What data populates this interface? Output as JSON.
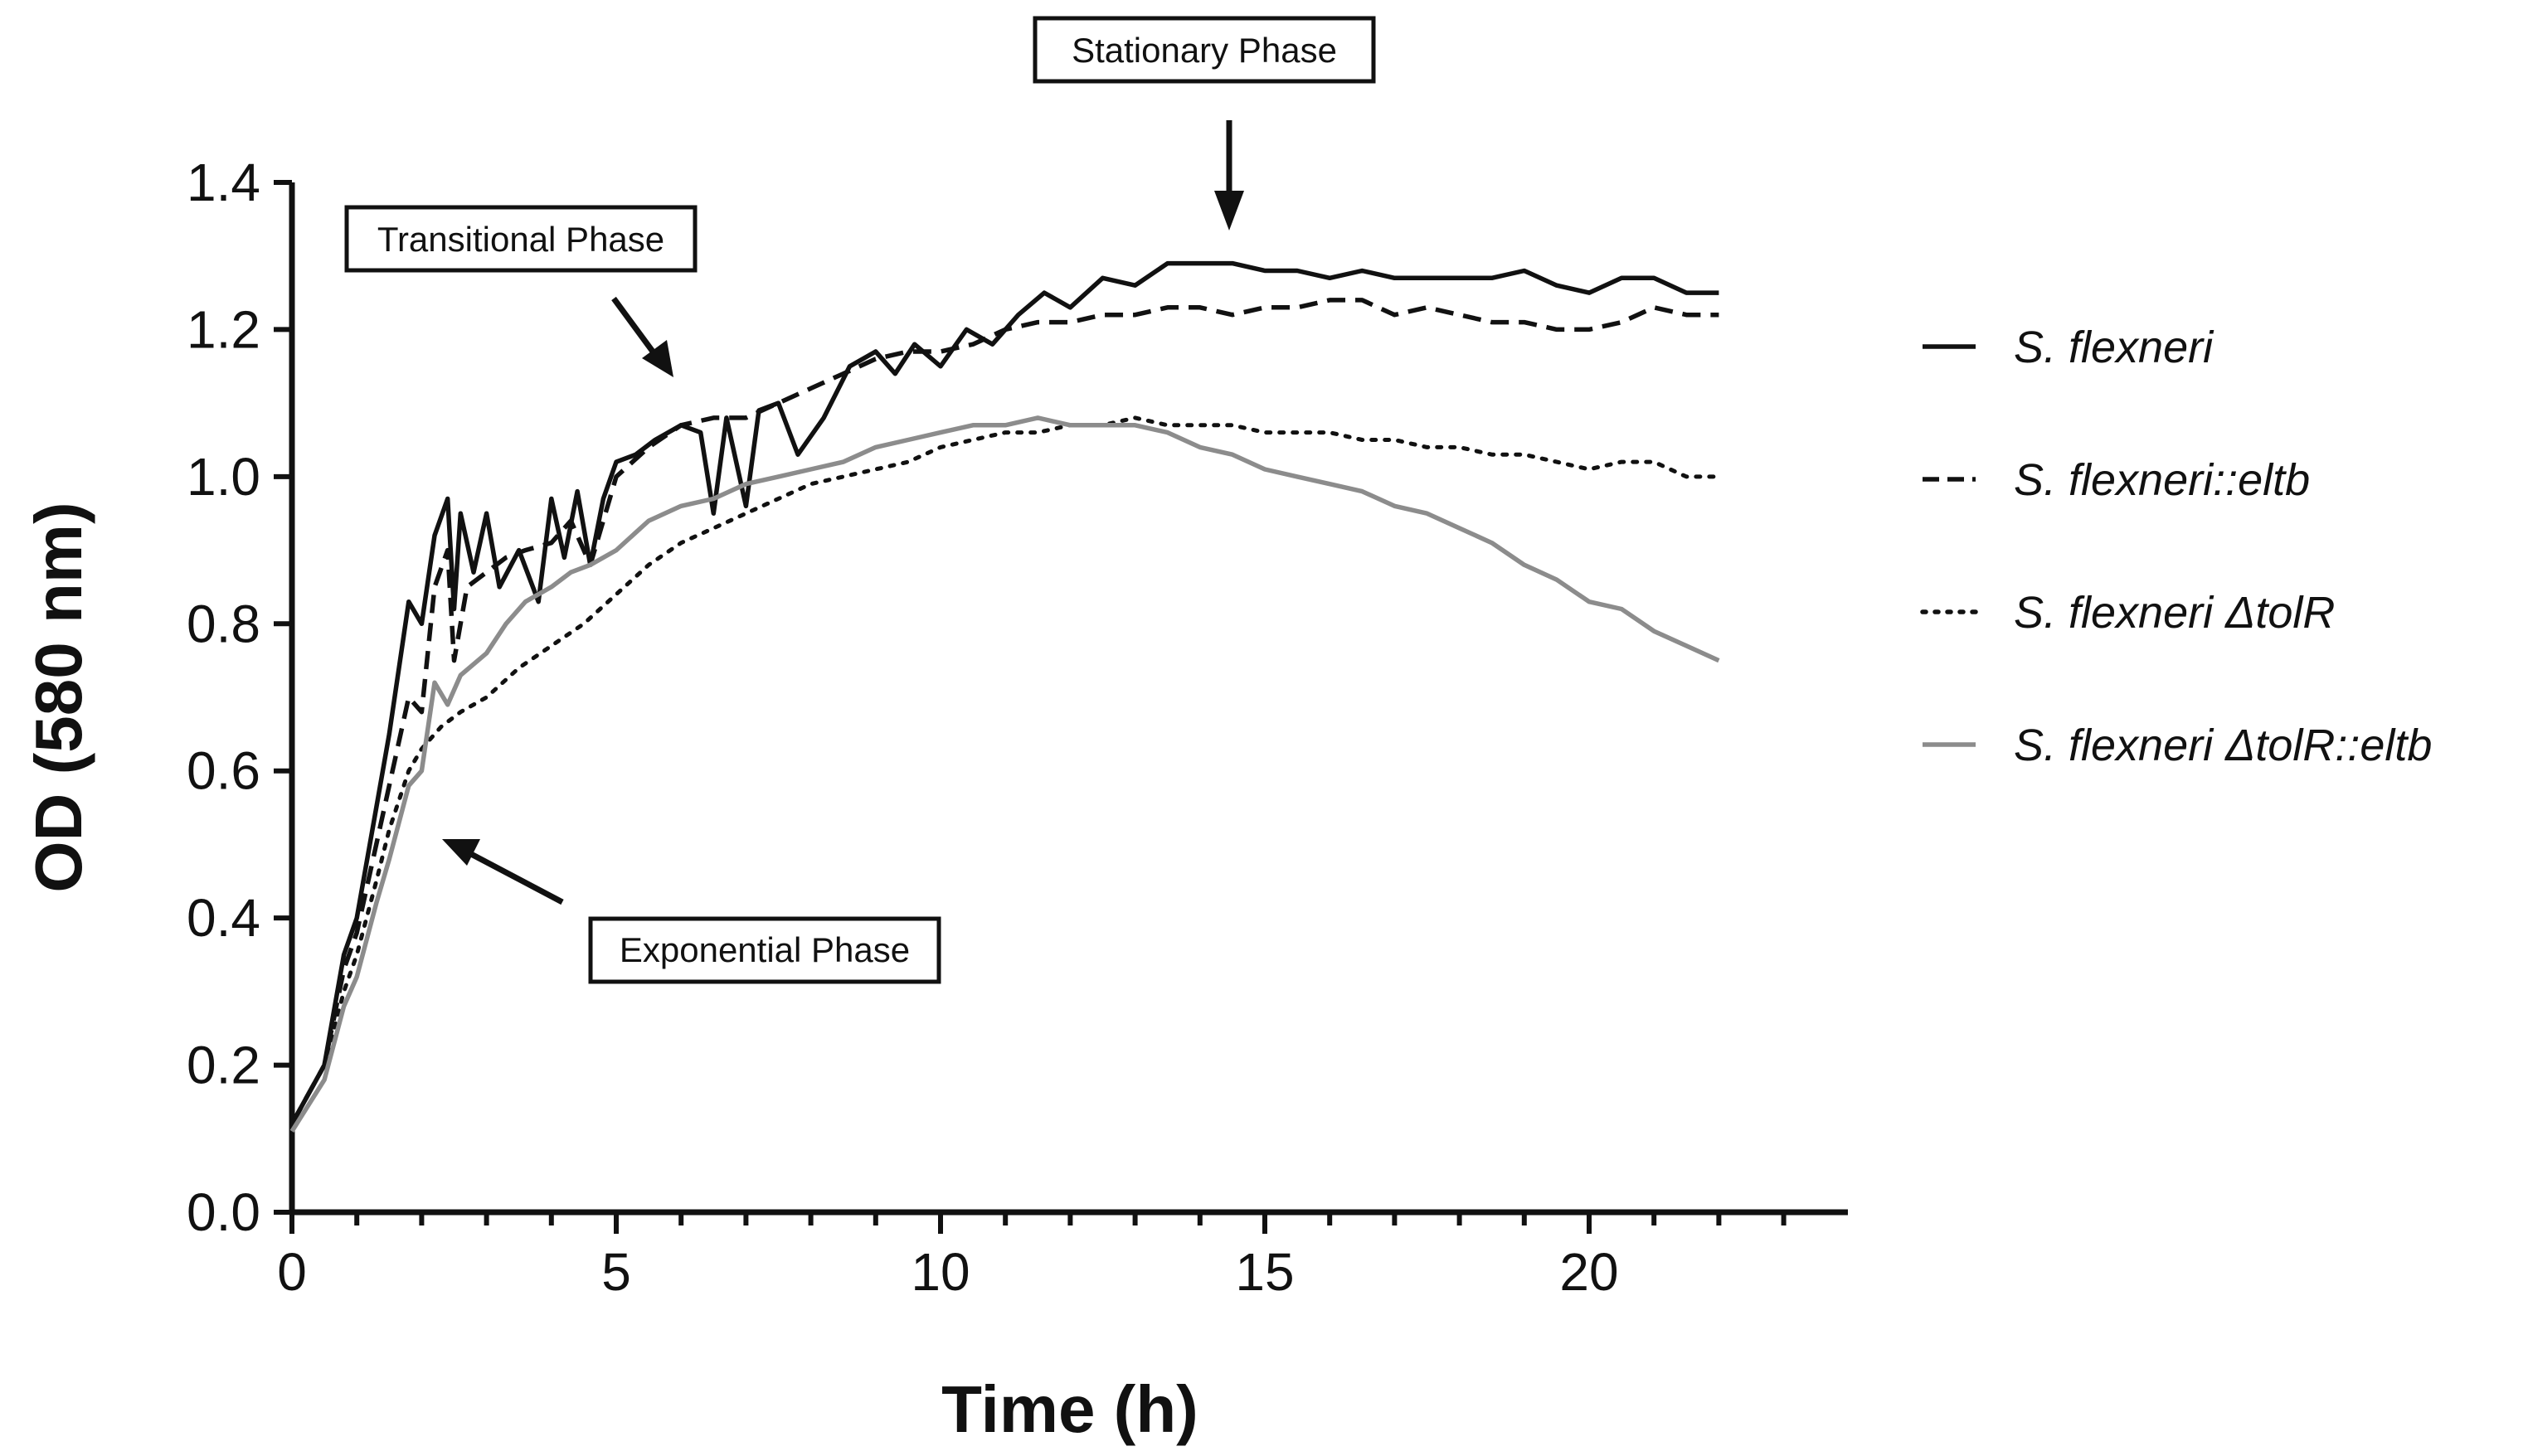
{
  "chart_data": {
    "type": "line",
    "title": "",
    "xlabel": "Time (h)",
    "ylabel": "OD (580 nm)",
    "xlim": [
      0,
      24
    ],
    "ylim": [
      0,
      1.4
    ],
    "xticks": [
      0,
      5,
      10,
      15,
      20
    ],
    "xtick_labels": [
      "0",
      "5",
      "10",
      "15",
      "20"
    ],
    "yticks": [
      0,
      0.2,
      0.4,
      0.6,
      0.8,
      1.0,
      1.2,
      1.4
    ],
    "ytick_labels": [
      "0.0",
      "0.2",
      "0.4",
      "0.6",
      "0.8",
      "1.0",
      "1.2",
      "1.4"
    ],
    "grid": false,
    "legend_position": "right",
    "series": [
      {
        "name": "S. flexneri",
        "color": "#111111",
        "style": "solid",
        "points": [
          [
            0,
            0.12
          ],
          [
            0.5,
            0.2
          ],
          [
            0.8,
            0.35
          ],
          [
            1.0,
            0.4
          ],
          [
            1.3,
            0.55
          ],
          [
            1.5,
            0.65
          ],
          [
            1.8,
            0.83
          ],
          [
            2.0,
            0.8
          ],
          [
            2.2,
            0.92
          ],
          [
            2.4,
            0.97
          ],
          [
            2.5,
            0.82
          ],
          [
            2.6,
            0.95
          ],
          [
            2.8,
            0.87
          ],
          [
            3.0,
            0.95
          ],
          [
            3.2,
            0.85
          ],
          [
            3.5,
            0.9
          ],
          [
            3.8,
            0.83
          ],
          [
            4.0,
            0.97
          ],
          [
            4.2,
            0.89
          ],
          [
            4.4,
            0.98
          ],
          [
            4.6,
            0.88
          ],
          [
            4.8,
            0.97
          ],
          [
            5.0,
            1.02
          ],
          [
            5.3,
            1.03
          ],
          [
            5.6,
            1.05
          ],
          [
            6.0,
            1.07
          ],
          [
            6.3,
            1.06
          ],
          [
            6.5,
            0.95
          ],
          [
            6.7,
            1.08
          ],
          [
            7.0,
            0.96
          ],
          [
            7.2,
            1.09
          ],
          [
            7.5,
            1.1
          ],
          [
            7.8,
            1.03
          ],
          [
            8.2,
            1.08
          ],
          [
            8.6,
            1.15
          ],
          [
            9.0,
            1.17
          ],
          [
            9.3,
            1.14
          ],
          [
            9.6,
            1.18
          ],
          [
            10.0,
            1.15
          ],
          [
            10.4,
            1.2
          ],
          [
            10.8,
            1.18
          ],
          [
            11.2,
            1.22
          ],
          [
            11.6,
            1.25
          ],
          [
            12.0,
            1.23
          ],
          [
            12.5,
            1.27
          ],
          [
            13.0,
            1.26
          ],
          [
            13.5,
            1.29
          ],
          [
            14.0,
            1.29
          ],
          [
            14.5,
            1.29
          ],
          [
            15.0,
            1.28
          ],
          [
            15.5,
            1.28
          ],
          [
            16.0,
            1.27
          ],
          [
            16.5,
            1.28
          ],
          [
            17.0,
            1.27
          ],
          [
            17.5,
            1.27
          ],
          [
            18.0,
            1.27
          ],
          [
            18.5,
            1.27
          ],
          [
            19.0,
            1.28
          ],
          [
            19.5,
            1.26
          ],
          [
            20.0,
            1.25
          ],
          [
            20.5,
            1.27
          ],
          [
            21.0,
            1.27
          ],
          [
            21.5,
            1.25
          ],
          [
            22.0,
            1.25
          ]
        ]
      },
      {
        "name": "S. flexneri::eltb",
        "color": "#111111",
        "style": "dashed",
        "points": [
          [
            0,
            0.12
          ],
          [
            0.5,
            0.2
          ],
          [
            0.8,
            0.33
          ],
          [
            1.0,
            0.38
          ],
          [
            1.3,
            0.5
          ],
          [
            1.5,
            0.58
          ],
          [
            1.8,
            0.7
          ],
          [
            2.0,
            0.68
          ],
          [
            2.2,
            0.85
          ],
          [
            2.4,
            0.9
          ],
          [
            2.5,
            0.75
          ],
          [
            2.7,
            0.85
          ],
          [
            3.0,
            0.87
          ],
          [
            3.3,
            0.89
          ],
          [
            3.6,
            0.9
          ],
          [
            4.0,
            0.91
          ],
          [
            4.3,
            0.94
          ],
          [
            4.6,
            0.88
          ],
          [
            5.0,
            1.0
          ],
          [
            5.5,
            1.04
          ],
          [
            6.0,
            1.07
          ],
          [
            6.5,
            1.08
          ],
          [
            7.0,
            1.08
          ],
          [
            7.5,
            1.1
          ],
          [
            8.0,
            1.12
          ],
          [
            8.5,
            1.14
          ],
          [
            9.0,
            1.16
          ],
          [
            9.5,
            1.17
          ],
          [
            10.0,
            1.17
          ],
          [
            10.5,
            1.18
          ],
          [
            11.0,
            1.2
          ],
          [
            11.5,
            1.21
          ],
          [
            12.0,
            1.21
          ],
          [
            12.5,
            1.22
          ],
          [
            13.0,
            1.22
          ],
          [
            13.5,
            1.23
          ],
          [
            14.0,
            1.23
          ],
          [
            14.5,
            1.22
          ],
          [
            15.0,
            1.23
          ],
          [
            15.5,
            1.23
          ],
          [
            16.0,
            1.24
          ],
          [
            16.5,
            1.24
          ],
          [
            17.0,
            1.22
          ],
          [
            17.5,
            1.23
          ],
          [
            18.0,
            1.22
          ],
          [
            18.5,
            1.21
          ],
          [
            19.0,
            1.21
          ],
          [
            19.5,
            1.2
          ],
          [
            20.0,
            1.2
          ],
          [
            20.5,
            1.21
          ],
          [
            21.0,
            1.23
          ],
          [
            21.5,
            1.22
          ],
          [
            22.0,
            1.22
          ]
        ]
      },
      {
        "name": "S. flexneri ΔtolR",
        "color": "#111111",
        "style": "dotted",
        "points": [
          [
            0,
            0.12
          ],
          [
            0.5,
            0.2
          ],
          [
            0.8,
            0.3
          ],
          [
            1.0,
            0.35
          ],
          [
            1.3,
            0.45
          ],
          [
            1.5,
            0.52
          ],
          [
            1.8,
            0.6
          ],
          [
            2.0,
            0.63
          ],
          [
            2.3,
            0.66
          ],
          [
            2.6,
            0.68
          ],
          [
            3.0,
            0.7
          ],
          [
            3.5,
            0.74
          ],
          [
            4.0,
            0.77
          ],
          [
            4.5,
            0.8
          ],
          [
            5.0,
            0.84
          ],
          [
            5.5,
            0.88
          ],
          [
            6.0,
            0.91
          ],
          [
            6.5,
            0.93
          ],
          [
            7.0,
            0.95
          ],
          [
            7.5,
            0.97
          ],
          [
            8.0,
            0.99
          ],
          [
            8.5,
            1.0
          ],
          [
            9.0,
            1.01
          ],
          [
            9.5,
            1.02
          ],
          [
            10.0,
            1.04
          ],
          [
            10.5,
            1.05
          ],
          [
            11.0,
            1.06
          ],
          [
            11.5,
            1.06
          ],
          [
            12.0,
            1.07
          ],
          [
            12.5,
            1.07
          ],
          [
            13.0,
            1.08
          ],
          [
            13.5,
            1.07
          ],
          [
            14.0,
            1.07
          ],
          [
            14.5,
            1.07
          ],
          [
            15.0,
            1.06
          ],
          [
            15.5,
            1.06
          ],
          [
            16.0,
            1.06
          ],
          [
            16.5,
            1.05
          ],
          [
            17.0,
            1.05
          ],
          [
            17.5,
            1.04
          ],
          [
            18.0,
            1.04
          ],
          [
            18.5,
            1.03
          ],
          [
            19.0,
            1.03
          ],
          [
            19.5,
            1.02
          ],
          [
            20.0,
            1.01
          ],
          [
            20.5,
            1.02
          ],
          [
            21.0,
            1.02
          ],
          [
            21.5,
            1.0
          ],
          [
            22.0,
            1.0
          ]
        ]
      },
      {
        "name": "S. flexneri ΔtolR::eltb",
        "color": "#8c8c8c",
        "style": "solid",
        "points": [
          [
            0,
            0.11
          ],
          [
            0.5,
            0.18
          ],
          [
            0.8,
            0.28
          ],
          [
            1.0,
            0.32
          ],
          [
            1.3,
            0.42
          ],
          [
            1.5,
            0.48
          ],
          [
            1.8,
            0.58
          ],
          [
            2.0,
            0.6
          ],
          [
            2.2,
            0.72
          ],
          [
            2.4,
            0.69
          ],
          [
            2.6,
            0.73
          ],
          [
            3.0,
            0.76
          ],
          [
            3.3,
            0.8
          ],
          [
            3.6,
            0.83
          ],
          [
            4.0,
            0.85
          ],
          [
            4.3,
            0.87
          ],
          [
            4.6,
            0.88
          ],
          [
            5.0,
            0.9
          ],
          [
            5.5,
            0.94
          ],
          [
            6.0,
            0.96
          ],
          [
            6.5,
            0.97
          ],
          [
            7.0,
            0.99
          ],
          [
            7.5,
            1.0
          ],
          [
            8.0,
            1.01
          ],
          [
            8.5,
            1.02
          ],
          [
            9.0,
            1.04
          ],
          [
            9.5,
            1.05
          ],
          [
            10.0,
            1.06
          ],
          [
            10.5,
            1.07
          ],
          [
            11.0,
            1.07
          ],
          [
            11.5,
            1.08
          ],
          [
            12.0,
            1.07
          ],
          [
            12.5,
            1.07
          ],
          [
            13.0,
            1.07
          ],
          [
            13.5,
            1.06
          ],
          [
            14.0,
            1.04
          ],
          [
            14.5,
            1.03
          ],
          [
            15.0,
            1.01
          ],
          [
            15.5,
            1.0
          ],
          [
            16.0,
            0.99
          ],
          [
            16.5,
            0.98
          ],
          [
            17.0,
            0.96
          ],
          [
            17.5,
            0.95
          ],
          [
            18.0,
            0.93
          ],
          [
            18.5,
            0.91
          ],
          [
            19.0,
            0.88
          ],
          [
            19.5,
            0.86
          ],
          [
            20.0,
            0.83
          ],
          [
            20.5,
            0.82
          ],
          [
            21.0,
            0.79
          ],
          [
            21.5,
            0.77
          ],
          [
            22.0,
            0.75
          ]
        ]
      }
    ],
    "annotations": [
      {
        "text": "Stationary Phase",
        "x": 14.5,
        "y": 1.3
      },
      {
        "text": "Transitional Phase",
        "x": 6.0,
        "y": 1.13
      },
      {
        "text": "Exponential Phase",
        "x": 2.3,
        "y": 0.62
      }
    ]
  }
}
